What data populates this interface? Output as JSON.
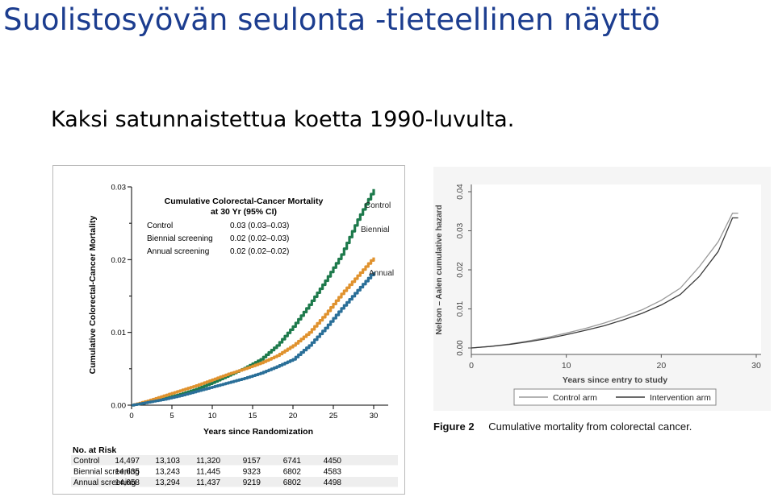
{
  "slide": {
    "title": "Suolistosyövän seulonta -tieteellinen näyttö",
    "subtitle": "Kaksi satunnaistettua koetta 1990-luvulta."
  },
  "colors": {
    "title": "#1c3d8f",
    "control": "#1e7a4c",
    "biennial": "#e0922e",
    "annual": "#2a6f98"
  },
  "chart_data": [
    {
      "type": "line",
      "title": "Cumulative Colorectal-Cancer Mortality at 30 Yr (95% CI)",
      "xlabel": "Years since Randomization",
      "ylabel": "Cumulative Colorectal-Cancer Mortality",
      "xlim": [
        0,
        30
      ],
      "ylim": [
        0,
        0.03
      ],
      "xticks": [
        "0",
        "5",
        "10",
        "15",
        "20",
        "25",
        "30"
      ],
      "yticks": [
        "0.00",
        "0.01",
        "0.02",
        "0.03"
      ],
      "ci_table": [
        {
          "label": "Control",
          "value": "0.03 (0.03–0.03)"
        },
        {
          "label": "Biennial screening",
          "value": "0.02 (0.02–0.03)"
        },
        {
          "label": "Annual screening",
          "value": "0.02 (0.02–0.02)"
        }
      ],
      "series": [
        {
          "name": "Control",
          "color": "#1e7a4c",
          "x": [
            0,
            2,
            4,
            6,
            8,
            10,
            12,
            14,
            16,
            18,
            20,
            22,
            24,
            26,
            28,
            30
          ],
          "y": [
            0,
            0.0004,
            0.0009,
            0.0015,
            0.0022,
            0.0031,
            0.0041,
            0.0051,
            0.0063,
            0.0082,
            0.0108,
            0.0138,
            0.0171,
            0.0207,
            0.0255,
            0.0297
          ]
        },
        {
          "name": "Biennial",
          "color": "#e0922e",
          "x": [
            0,
            2,
            4,
            6,
            8,
            10,
            12,
            14,
            16,
            18,
            20,
            22,
            24,
            26,
            28,
            30
          ],
          "y": [
            0,
            0.0006,
            0.0013,
            0.002,
            0.0027,
            0.0035,
            0.0043,
            0.005,
            0.0058,
            0.0068,
            0.0082,
            0.01,
            0.0125,
            0.0153,
            0.0178,
            0.0203
          ]
        },
        {
          "name": "Annual",
          "color": "#2a6f98",
          "x": [
            0,
            2,
            4,
            6,
            8,
            10,
            12,
            14,
            16,
            18,
            20,
            22,
            24,
            26,
            28,
            30
          ],
          "y": [
            0,
            0.0004,
            0.0008,
            0.0013,
            0.0019,
            0.0025,
            0.0031,
            0.0037,
            0.0044,
            0.0053,
            0.0063,
            0.0082,
            0.0106,
            0.0133,
            0.0158,
            0.0183
          ]
        }
      ],
      "at_risk": {
        "title": "No. at Risk",
        "rows": [
          {
            "label": "Control",
            "values": [
              "14,497",
              "13,103",
              "11,320",
              "9157",
              "6741",
              "4450"
            ]
          },
          {
            "label": "Biennial screening",
            "values": [
              "14,635",
              "13,243",
              "11,445",
              "9323",
              "6802",
              "4583"
            ]
          },
          {
            "label": "Annual screening",
            "values": [
              "14,658",
              "13,294",
              "11,437",
              "9219",
              "6802",
              "4498"
            ]
          }
        ]
      }
    },
    {
      "type": "line",
      "xlabel": "Years since entry to study",
      "ylabel": "Nelson – Aalen cumulative hazard",
      "xlim": [
        0,
        30
      ],
      "ylim": [
        0,
        0.04
      ],
      "xticks": [
        "0",
        "10",
        "20",
        "30"
      ],
      "yticks": [
        "0.00",
        "0.01",
        "0.02",
        "0.03",
        "0.04"
      ],
      "legend_position": "bottom",
      "series": [
        {
          "name": "Control arm",
          "color": "#9a9a9a",
          "x": [
            0,
            2,
            4,
            6,
            8,
            10,
            12,
            14,
            16,
            18,
            20,
            22,
            24,
            26,
            27.5
          ],
          "y": [
            0,
            0.0004,
            0.001,
            0.0018,
            0.0027,
            0.0038,
            0.005,
            0.0064,
            0.008,
            0.0098,
            0.0122,
            0.0153,
            0.0208,
            0.0272,
            0.0345
          ]
        },
        {
          "name": "Intervention arm",
          "color": "#3a3a3a",
          "x": [
            0,
            2,
            4,
            6,
            8,
            10,
            12,
            14,
            16,
            18,
            20,
            22,
            24,
            26,
            27.5
          ],
          "y": [
            0,
            0.0004,
            0.0009,
            0.0016,
            0.0024,
            0.0034,
            0.0045,
            0.0057,
            0.0072,
            0.0089,
            0.011,
            0.0137,
            0.0183,
            0.0247,
            0.0333
          ]
        }
      ]
    }
  ],
  "figure2": {
    "label": "Figure 2",
    "caption": "Cumulative mortality from colorectal cancer."
  }
}
